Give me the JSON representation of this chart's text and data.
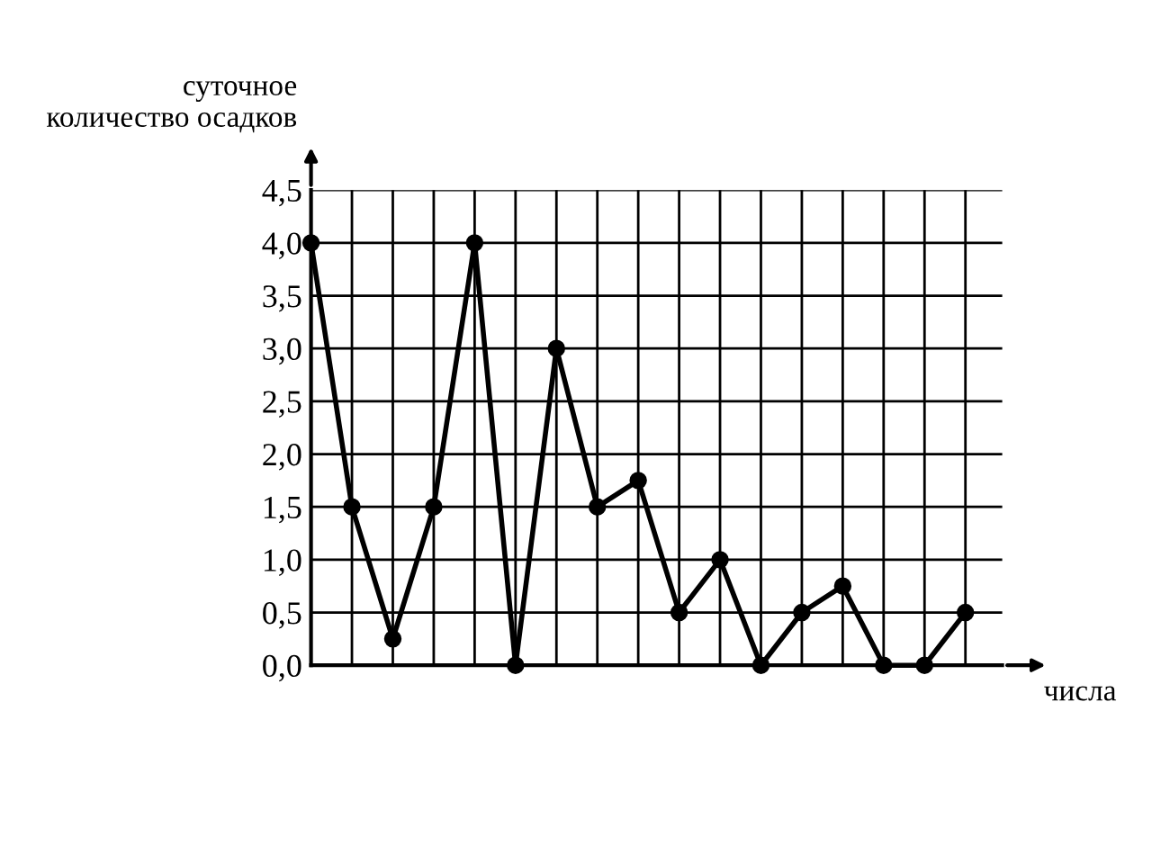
{
  "chart_data": {
    "type": "line",
    "ylabel": "суточное\nколичество осадков",
    "xlabel": "числа",
    "categories": [
      null,
      null,
      null,
      null,
      null,
      null,
      null,
      null,
      null,
      null,
      null,
      null,
      null,
      null,
      null,
      null,
      null
    ],
    "series": [
      {
        "color": "#000000",
        "values": [
          4.0,
          1.5,
          0.25,
          1.5,
          4.0,
          0,
          3.0,
          1.5,
          1.75,
          0.5,
          1.0,
          0,
          0.5,
          0.75,
          0,
          0,
          0.5
        ]
      }
    ],
    "ylim": [
      0,
      4.5
    ],
    "yticks": [
      {
        "value": 0,
        "label": "0,0"
      },
      {
        "value": 0.5,
        "label": "0,5"
      },
      {
        "value": 1,
        "label": "1,0"
      },
      {
        "value": 1.5,
        "label": "1,5"
      },
      {
        "value": 2,
        "label": "2,0"
      },
      {
        "value": 2.5,
        "label": "2,5"
      },
      {
        "value": 3,
        "label": "3,0"
      },
      {
        "value": 3.5,
        "label": "3,5"
      },
      {
        "value": 4,
        "label": "4,0"
      },
      {
        "value": 4.5,
        "label": "4,5"
      }
    ],
    "grid": true,
    "marker": "circle",
    "line_style": "solid"
  }
}
